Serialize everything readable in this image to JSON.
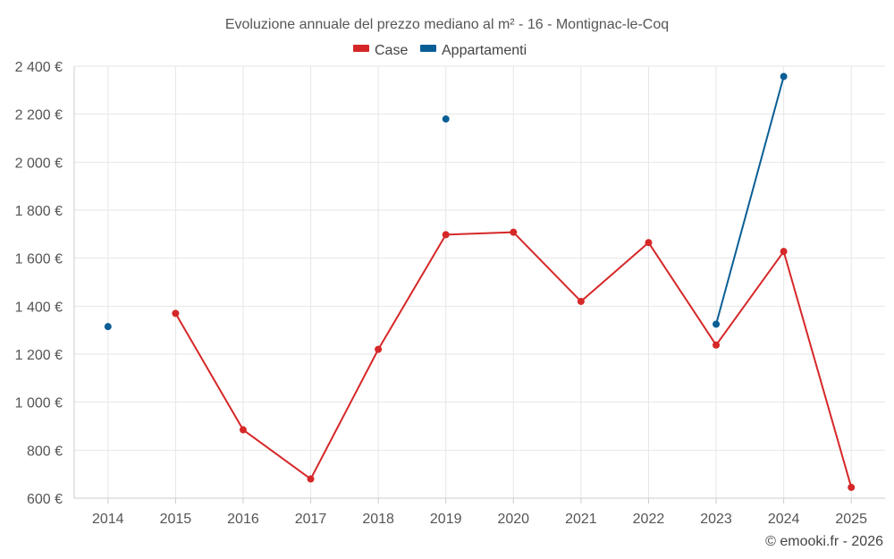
{
  "chart_data": {
    "type": "line",
    "title": "Evoluzione annuale del prezzo mediano al m² - 16 - Montignac-le-Coq",
    "categories": [
      "2014",
      "2015",
      "2016",
      "2017",
      "2018",
      "2019",
      "2020",
      "2021",
      "2022",
      "2023",
      "2024",
      "2025"
    ],
    "ylim": [
      600,
      2400
    ],
    "yticks": [
      600,
      800,
      1000,
      1200,
      1400,
      1600,
      1800,
      2000,
      2200,
      2400
    ],
    "ytick_labels": [
      "600 €",
      "800 €",
      "1 000 €",
      "1 200 €",
      "1 400 €",
      "1 600 €",
      "1 800 €",
      "2 000 €",
      "2 200 €",
      "2 400 €"
    ],
    "legend_position": "top-center",
    "grid": true,
    "series": [
      {
        "name": "Case",
        "color": "#d62728",
        "values": [
          null,
          1370,
          885,
          680,
          1220,
          1698,
          1708,
          1420,
          1665,
          1238,
          1628,
          645
        ]
      },
      {
        "name": "Appartamenti",
        "color": "#0a5e96",
        "values": [
          1315,
          null,
          null,
          null,
          null,
          2180,
          null,
          null,
          null,
          1325,
          2357,
          null
        ]
      }
    ]
  },
  "credit": "© emooki.fr - 2026"
}
